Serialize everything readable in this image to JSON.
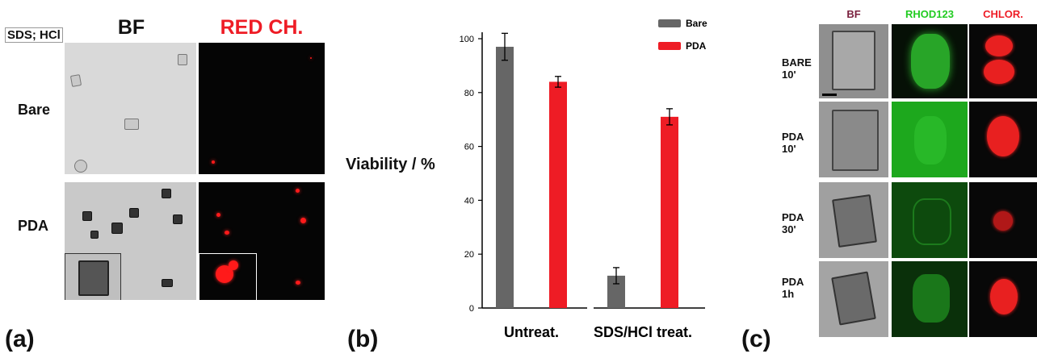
{
  "panel_a": {
    "letter": "(a)",
    "tag": "SDS; HCl",
    "col_bf": "BF",
    "col_red": "RED CH.",
    "row_bare": "Bare",
    "row_pda": "PDA"
  },
  "panel_b": {
    "letter": "(b)"
  },
  "panel_c": {
    "letter": "(c)",
    "col_bf": "BF",
    "col_rhod": "RHOD123",
    "col_chlor": "CHLOR.",
    "rows": [
      {
        "line1": "BARE",
        "line2": "10'"
      },
      {
        "line1": "PDA",
        "line2": "10'"
      },
      {
        "line1": "PDA",
        "line2": "30'"
      },
      {
        "line1": "PDA",
        "line2": "1h"
      }
    ]
  },
  "chart_data": {
    "type": "bar",
    "ylabel": "Viability / %",
    "ylim": [
      0,
      105
    ],
    "yticks": [
      0,
      20,
      40,
      60,
      80,
      100
    ],
    "categories": [
      "Untreat.",
      "SDS/HCl treat."
    ],
    "series": [
      {
        "name": "Bare",
        "color": "#666666",
        "values": [
          97,
          12
        ],
        "errors": [
          5,
          3
        ]
      },
      {
        "name": "PDA",
        "color": "#ee1c25",
        "values": [
          84,
          71
        ],
        "errors": [
          2,
          3
        ]
      }
    ],
    "legend": "top-right",
    "grid": false
  },
  "colors": {
    "red_label": "#ee1c25",
    "bf_label": "#7a1f3d",
    "rhod_label": "#22cc22",
    "chlor_label": "#ee1c25"
  }
}
